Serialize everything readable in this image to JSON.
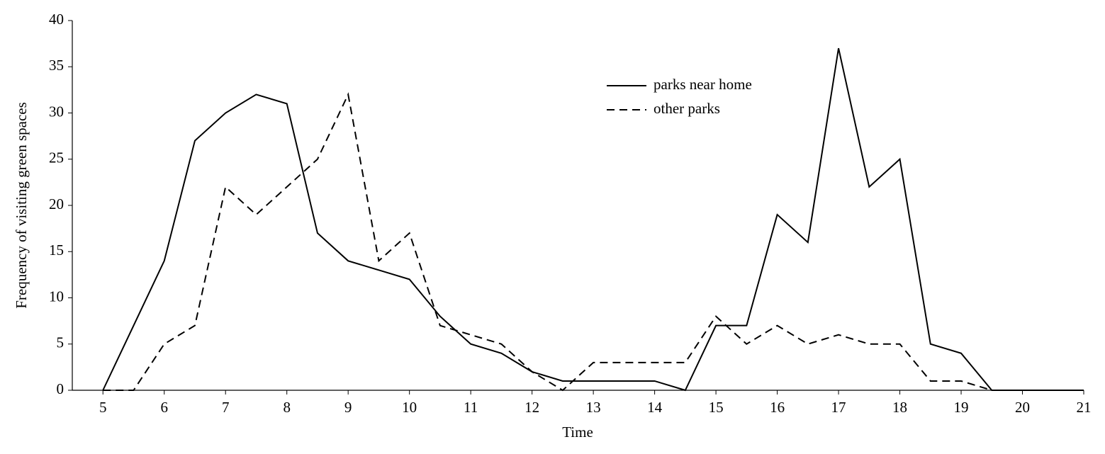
{
  "chart_data": {
    "type": "line",
    "x_label": "Time",
    "y_label": "Frequency of visiting green spaces",
    "x": [
      5,
      5.5,
      6,
      6.5,
      7,
      7.5,
      8,
      8.5,
      9,
      9.5,
      10,
      10.5,
      11,
      11.5,
      12,
      12.5,
      13,
      13.5,
      14,
      14.5,
      15,
      15.5,
      16,
      16.5,
      17,
      17.5,
      18,
      18.5,
      19,
      19.5,
      20,
      20.5,
      21
    ],
    "series": [
      {
        "name": "parks near home",
        "color": "#000000",
        "dash": "solid",
        "values": [
          0,
          7,
          14,
          27,
          30,
          32,
          31,
          17,
          14,
          13,
          12,
          8,
          5,
          4,
          2,
          1,
          1,
          1,
          1,
          0,
          7,
          7,
          19,
          16,
          37,
          22,
          25,
          5,
          4,
          0,
          0,
          0,
          0
        ]
      },
      {
        "name": "other parks",
        "color": "#000000",
        "dash": "dashed",
        "values": [
          0,
          0,
          5,
          7,
          22,
          19,
          22,
          25,
          32,
          14,
          17,
          7,
          6,
          5,
          2,
          0,
          3,
          3,
          3,
          3,
          8,
          5,
          7,
          5,
          6,
          5,
          5,
          1,
          1,
          0,
          0,
          0,
          0
        ]
      }
    ],
    "xlim": [
      4.5,
      21
    ],
    "ylim": [
      0,
      40
    ],
    "xticks": [
      5,
      6,
      7,
      8,
      9,
      10,
      11,
      12,
      13,
      14,
      15,
      16,
      17,
      18,
      19,
      20,
      21
    ],
    "yticks": [
      0,
      5,
      10,
      15,
      20,
      25,
      30,
      35,
      40
    ],
    "grid": false,
    "legend": "upper-center"
  }
}
